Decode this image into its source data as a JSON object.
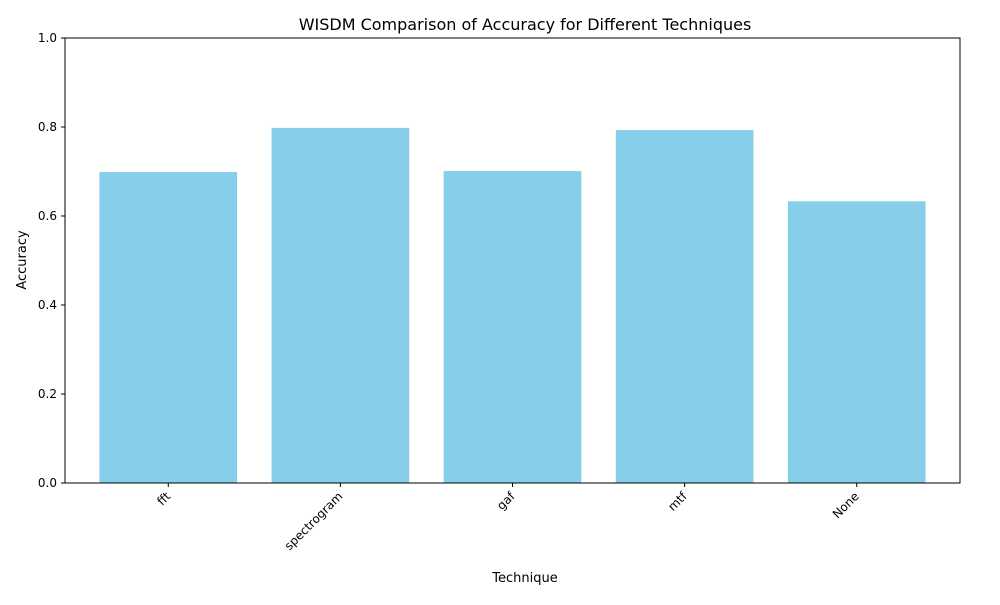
{
  "chart_data": {
    "type": "bar",
    "title": "WISDM Comparison of Accuracy for Different Techniques",
    "xlabel": "Technique",
    "ylabel": "Accuracy",
    "categories": [
      "fft",
      "spectrogram",
      "gaf",
      "mtf",
      "None"
    ],
    "values": [
      0.699,
      0.798,
      0.701,
      0.793,
      0.633
    ],
    "ylim": [
      0,
      1.0
    ],
    "yticks": [
      "0.0",
      "0.2",
      "0.4",
      "0.6",
      "0.8",
      "1.0"
    ],
    "bar_color": "#87CEEB",
    "grid": false,
    "legend": "none"
  }
}
